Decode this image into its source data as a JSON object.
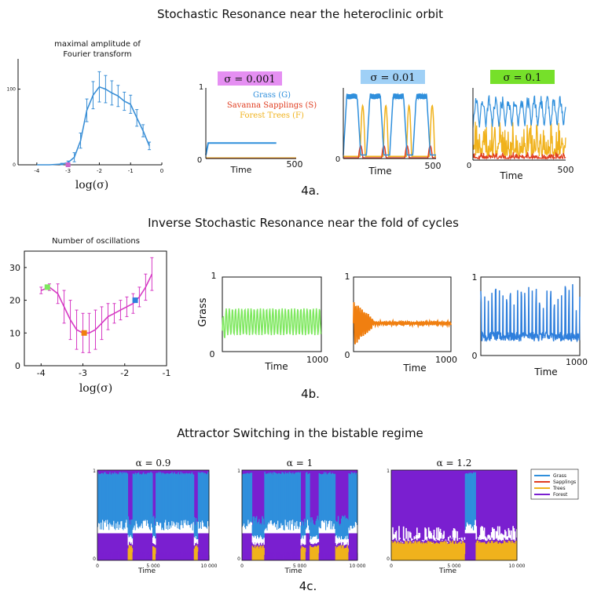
{
  "chart_data": [
    {
      "id": "amp",
      "type": "line",
      "title": "Stochastic Resonance near the heteroclinic orbit",
      "subtitle": "maximal amplitude of Fourier transform",
      "subtitle_lines": [
        "maximal amplitude of",
        "Fourier transform"
      ],
      "xlabel": "log(σ)",
      "ylabel": "",
      "xlim": [
        -4.6,
        0
      ],
      "ylim": [
        0,
        140
      ],
      "xticks": [
        -4,
        -3,
        -2,
        -1,
        0
      ],
      "xtick_labels": [
        "-4",
        "-3",
        "-2",
        "-1",
        "0"
      ],
      "yticks": [
        0,
        100
      ],
      "ytick_labels": [
        "0",
        "100"
      ],
      "color": "#3a8fd6",
      "series": [
        {
          "name": "maximal amplitude",
          "x": [
            -4.0,
            -3.6,
            -3.2,
            -3.0,
            -2.8,
            -2.6,
            -2.4,
            -2.2,
            -2.0,
            -1.8,
            -1.6,
            -1.4,
            -1.2,
            -1.0,
            -0.8,
            -0.6,
            -0.4
          ],
          "values": [
            0,
            0,
            1,
            3,
            10,
            32,
            72,
            92,
            103,
            100,
            95,
            91,
            84,
            80,
            62,
            45,
            25
          ],
          "errors": [
            0,
            0,
            1,
            2,
            6,
            10,
            15,
            18,
            20,
            18,
            16,
            14,
            12,
            12,
            11,
            8,
            5
          ]
        }
      ],
      "markers": [
        {
          "x": -3.0,
          "y": 0,
          "color": "#cc66cc"
        }
      ],
      "caption": "4a."
    },
    {
      "id": "ts1",
      "type": "line",
      "badge": "σ = 0.001",
      "badge_color": "#e58ff2",
      "xlabel": "Time",
      "xlim": [
        0,
        500
      ],
      "ylim": [
        0,
        1
      ],
      "xtick_labels": [
        "0",
        "500"
      ],
      "ytick_labels": [
        "0",
        "1"
      ],
      "legend": [
        {
          "name": "Grass (G)",
          "color": "#2f8fdc"
        },
        {
          "name": "Savanna Sapplings (S)",
          "color": "#e03c1f"
        },
        {
          "name": "Forest Trees (F)",
          "color": "#f0b21c"
        }
      ]
    },
    {
      "id": "ts2",
      "type": "line",
      "badge": "σ = 0.01",
      "badge_color": "#9fd0f6",
      "xlabel": "Time",
      "xlim": [
        0,
        500
      ],
      "ylim": [
        0,
        1
      ],
      "xtick_labels": [
        "0",
        "500"
      ]
    },
    {
      "id": "ts3",
      "type": "line",
      "badge": "σ = 0.1",
      "badge_color": "#76e02a",
      "xlabel": "Time",
      "xlim": [
        0,
        500
      ],
      "ylim": [
        0,
        1
      ],
      "xtick_labels": [
        "0",
        "500"
      ]
    },
    {
      "id": "osc",
      "type": "line",
      "title": "Inverse Stochastic Resonance near the fold of cycles",
      "subtitle": "Number of oscillations",
      "xlabel": "log(σ)",
      "xlim": [
        -4.4,
        -1
      ],
      "ylim": [
        0,
        35
      ],
      "xticks": [
        -4,
        -3,
        -2,
        -1
      ],
      "xtick_labels": [
        "-4",
        "-3",
        "-2",
        "-1"
      ],
      "yticks": [
        0,
        10,
        20,
        30
      ],
      "ytick_labels": [
        "0",
        "10",
        "20",
        "30"
      ],
      "color": "#d63ac4",
      "series": [
        {
          "name": "number of oscillations",
          "x": [
            -4.0,
            -3.8,
            -3.6,
            -3.45,
            -3.3,
            -3.15,
            -3.0,
            -2.85,
            -2.7,
            -2.55,
            -2.4,
            -2.25,
            -2.1,
            -1.95,
            -1.8,
            -1.65,
            -1.5,
            -1.35
          ],
          "values": [
            23,
            24,
            22,
            18,
            14,
            11,
            10,
            10,
            11,
            13,
            15,
            16,
            17,
            18,
            19,
            21,
            24,
            28
          ],
          "errors": [
            1,
            1,
            3,
            5,
            6,
            6,
            6,
            6,
            6,
            5,
            4,
            3,
            3,
            3,
            3,
            3,
            4,
            5
          ]
        }
      ],
      "markers": [
        {
          "x": -3.85,
          "y": 24,
          "color": "#7ee85f"
        },
        {
          "x": -2.97,
          "y": 10,
          "color": "#f07f10"
        },
        {
          "x": -1.75,
          "y": 20,
          "color": "#2f7fdc"
        }
      ],
      "caption": "4b."
    },
    {
      "id": "g1",
      "type": "line",
      "ylabel": "Grass",
      "xlabel": "Time",
      "xlim": [
        0,
        1000
      ],
      "ylim": [
        0,
        1
      ],
      "color": "#7ee85f",
      "xtick_labels": [
        "0",
        "1000"
      ],
      "ytick_labels": [
        "0",
        "1"
      ]
    },
    {
      "id": "g2",
      "type": "line",
      "xlabel": "Time",
      "xlim": [
        0,
        1000
      ],
      "ylim": [
        0,
        1
      ],
      "color": "#f07f10",
      "xtick_labels": [
        "0",
        "1000"
      ],
      "ytick_labels": [
        "0",
        "1"
      ]
    },
    {
      "id": "g3",
      "type": "line",
      "xlabel": "Time",
      "xlim": [
        0,
        1000
      ],
      "ylim": [
        0,
        1
      ],
      "color": "#2f7fdc",
      "xtick_labels": [
        "0",
        "1000"
      ],
      "ytick_labels": [
        "0",
        "1"
      ]
    },
    {
      "id": "stack",
      "type": "area",
      "title": "Attractor Switching in the bistable regime",
      "xlabel": "Time",
      "xlim": [
        0,
        10000
      ],
      "ylim": [
        0,
        1
      ],
      "xtick_labels": [
        "0",
        "5 000",
        "10 000"
      ],
      "ytick_labels": [
        "0",
        "1"
      ],
      "legend": [
        {
          "name": "Grass",
          "color": "#2f8fdc"
        },
        {
          "name": "Sapplings",
          "color": "#e03c1f"
        },
        {
          "name": "Trees",
          "color": "#f0b21c"
        },
        {
          "name": "Forest",
          "color": "#7a1fd0"
        }
      ],
      "panels": [
        {
          "label": "α = 0.9"
        },
        {
          "label": "α = 1"
        },
        {
          "label": "α = 1.2"
        }
      ],
      "caption": "4c."
    }
  ]
}
